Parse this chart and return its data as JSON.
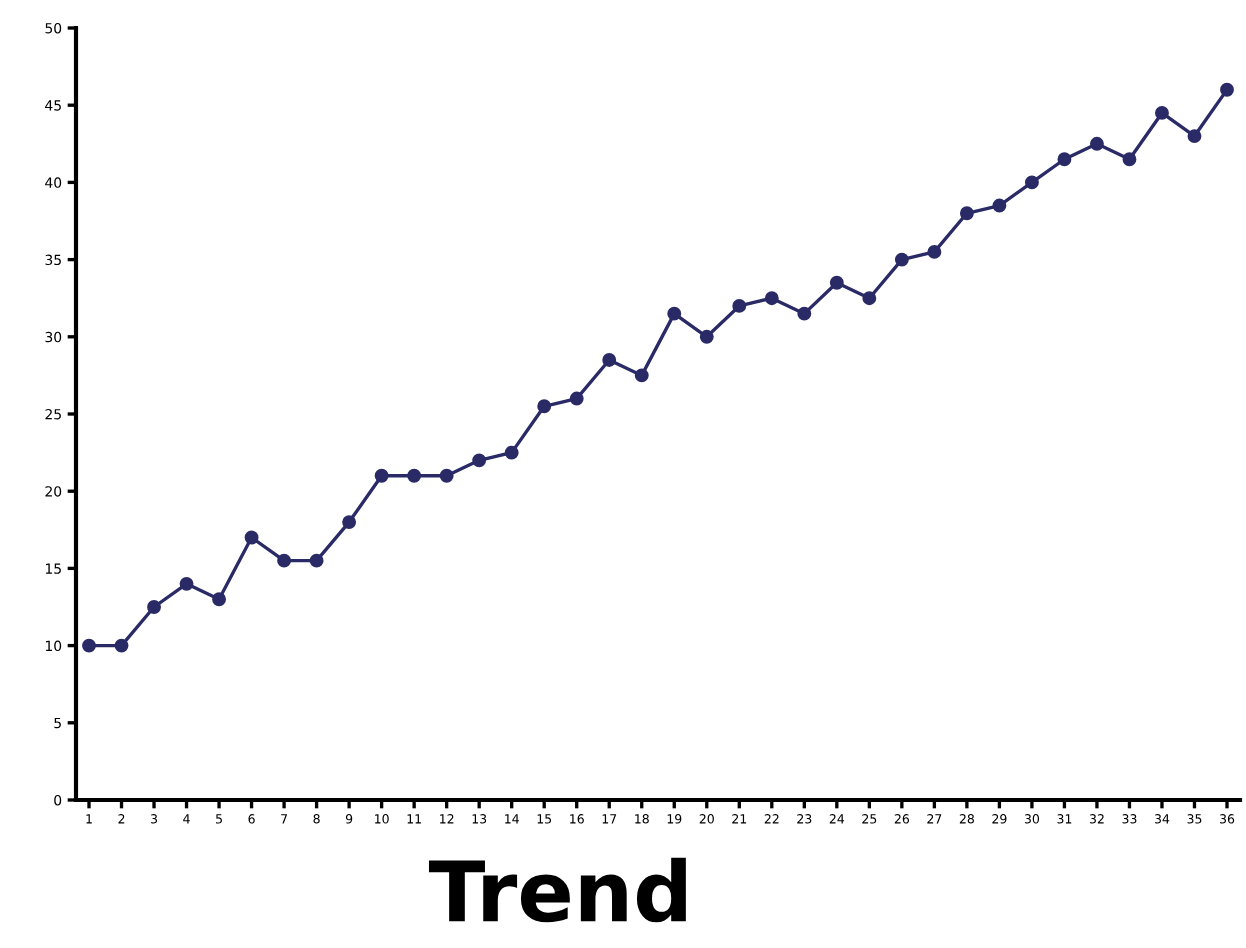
{
  "chart_data": {
    "type": "line",
    "title": "Trend",
    "categories": [
      "1",
      "2",
      "3",
      "4",
      "5",
      "6",
      "7",
      "8",
      "9",
      "10",
      "11",
      "12",
      "13",
      "14",
      "15",
      "16",
      "17",
      "18",
      "19",
      "20",
      "21",
      "22",
      "23",
      "24",
      "25",
      "26",
      "27",
      "28",
      "29",
      "30",
      "31",
      "32",
      "33",
      "34",
      "35",
      "36"
    ],
    "series": [
      {
        "color": "#2a2a66",
        "values": [
          10,
          10,
          12.5,
          14,
          13,
          17,
          15.5,
          15.5,
          18,
          21,
          21,
          21,
          22,
          22.5,
          25.5,
          26,
          28.5,
          27.5,
          31.5,
          30,
          32,
          32.5,
          31.5,
          33.5,
          32.5,
          35,
          35.5,
          38,
          38.5,
          40,
          41.5,
          42.5,
          41.5,
          44.5,
          43,
          46
        ]
      }
    ],
    "ylim": [
      0,
      50
    ],
    "yticks": [
      0,
      5,
      10,
      15,
      20,
      25,
      30,
      35,
      40,
      45,
      50
    ],
    "marker": "circle",
    "line_style": "solid",
    "grid": false,
    "legend": false
  }
}
